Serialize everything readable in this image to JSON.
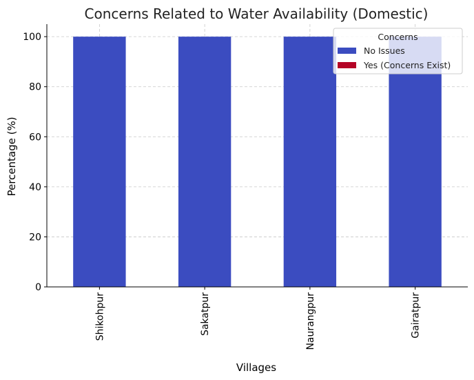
{
  "chart_data": {
    "type": "bar",
    "stacked": true,
    "title": "Concerns Related to Water Availability (Domestic)",
    "xlabel": "Villages",
    "ylabel": "Percentage (%)",
    "ylim": [
      0,
      105
    ],
    "yticks": [
      0,
      20,
      40,
      60,
      80,
      100
    ],
    "categories": [
      "Shikohpur",
      "Sakatpur",
      "Naurangpur",
      "Gairatpur"
    ],
    "series": [
      {
        "name": "No Issues",
        "values": [
          100,
          100,
          100,
          100
        ],
        "color": "#3b4cc0"
      },
      {
        "name": "Yes (Concerns Exist)",
        "values": [
          0,
          0,
          0,
          0
        ],
        "color": "#b40426"
      }
    ],
    "grid": true,
    "legend": {
      "title": "Concerns",
      "placement": "top-right"
    }
  }
}
